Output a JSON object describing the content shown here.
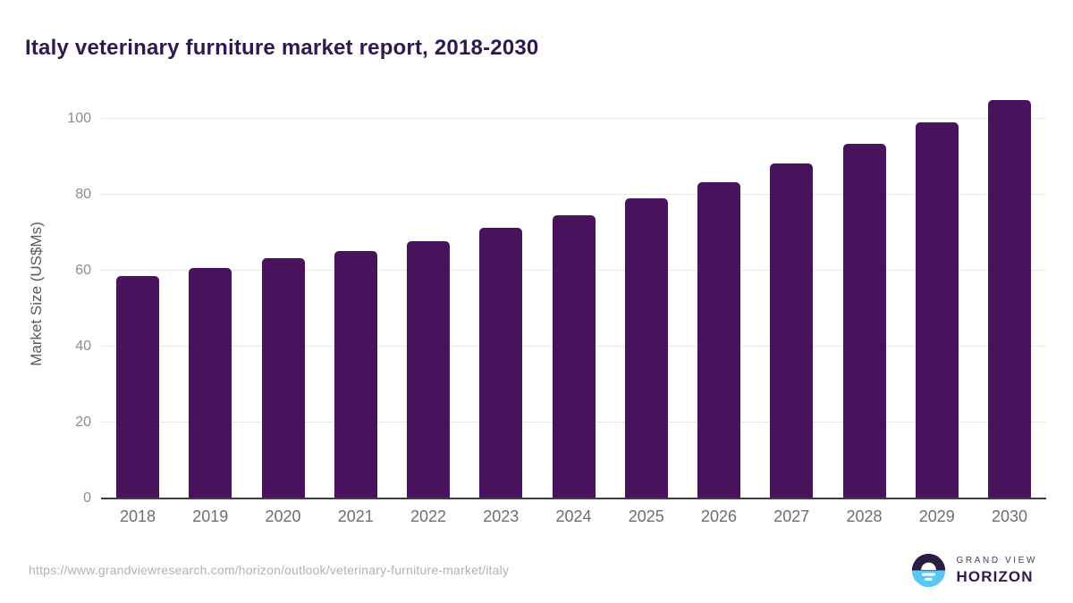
{
  "header": {
    "title": "Italy veterinary furniture market report, 2018-2030"
  },
  "chart_data": {
    "type": "bar",
    "title": "Italy veterinary furniture market report, 2018-2030",
    "categories": [
      "2018",
      "2019",
      "2020",
      "2021",
      "2022",
      "2023",
      "2024",
      "2025",
      "2026",
      "2027",
      "2028",
      "2029",
      "2030"
    ],
    "values": [
      58.6,
      60.8,
      63.3,
      65.3,
      67.8,
      71.2,
      74.6,
      79.0,
      83.4,
      88.3,
      93.5,
      99.0,
      105.0
    ],
    "xlabel": "",
    "ylabel": "Market Size (US$Ms)",
    "ylim": [
      0,
      108
    ],
    "yticks": [
      0,
      20,
      40,
      60,
      80,
      100
    ],
    "grid": true,
    "legend": "none",
    "bar_color": "#4a115c"
  },
  "footer": {
    "source_url": "https://www.grandviewresearch.com/horizon/outlook/veterinary-furniture-market/italy",
    "logo": {
      "icon": "sunrise-horizon-icon",
      "line1": "GRAND VIEW",
      "line2": "HORIZON"
    }
  },
  "colors": {
    "title": "#2e1a4d",
    "bar": "#4a115c",
    "grid": "#e9e9e9",
    "axis": "#3f3f3f",
    "ytick": "#8c8c8c",
    "xtick": "#6e6e6e",
    "ylabel": "#5a5a5a",
    "url": "#b2b2b2",
    "logo_dark": "#2a1c42",
    "logo_blue": "#58c7f2",
    "logo_text": "#2e1d49",
    "logo_subtext": "#453a60"
  }
}
